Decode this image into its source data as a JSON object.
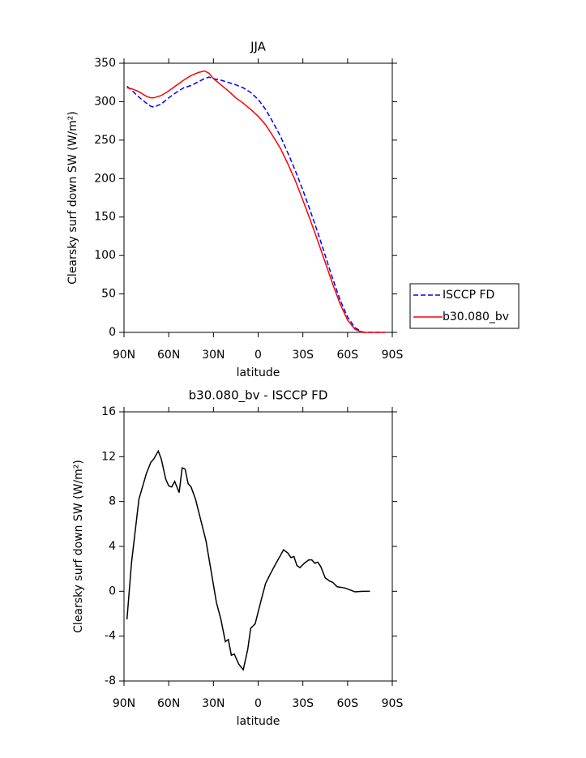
{
  "chart_data": [
    {
      "type": "line",
      "title": "JJA",
      "xlabel": "latitude",
      "ylabel": "Clearsky surf down SW (W/m²)",
      "x": [
        88,
        85,
        80,
        75,
        72,
        70,
        65,
        60,
        55,
        50,
        45,
        40,
        36,
        33,
        30,
        25,
        20,
        15,
        10,
        5,
        0,
        -5,
        -10,
        -15,
        -20,
        -25,
        -30,
        -35,
        -40,
        -45,
        -50,
        -55,
        -60,
        -65,
        -70,
        -75,
        -80,
        -85
      ],
      "series": [
        {
          "name": "ISCCP FD",
          "color": "#0000ff",
          "line_style": "dashed",
          "values": [
            320,
            315,
            306,
            298,
            294,
            293,
            297,
            305,
            312,
            318,
            321,
            326,
            330,
            332,
            330,
            328,
            325,
            322,
            318,
            312,
            303,
            290,
            273,
            255,
            233,
            210,
            185,
            158,
            130,
            100,
            70,
            42,
            20,
            6,
            0.5,
            0,
            0,
            0
          ]
        },
        {
          "name": "b30.080_bv",
          "color": "#ff0000",
          "line_style": "solid",
          "values": [
            318,
            317,
            313,
            307,
            305,
            305,
            308,
            314,
            321,
            328,
            334,
            338,
            340,
            337,
            330,
            322,
            314,
            305,
            298,
            290,
            281,
            270,
            255,
            239,
            219,
            197,
            172,
            146,
            119,
            91,
            63,
            37,
            16,
            4,
            0,
            0,
            0,
            0
          ]
        }
      ],
      "xlim": [
        90,
        -90
      ],
      "xticks": [
        {
          "value": 90,
          "label": "90N"
        },
        {
          "value": 60,
          "label": "60N"
        },
        {
          "value": 30,
          "label": "30N"
        },
        0,
        {
          "value": -30,
          "label": "30S"
        },
        {
          "value": -60,
          "label": "60S"
        },
        {
          "value": -90,
          "label": "90S"
        }
      ],
      "ylim": [
        0,
        350
      ],
      "yticks": [
        0,
        50,
        100,
        150,
        200,
        250,
        300,
        350
      ],
      "legend": "right"
    },
    {
      "type": "line",
      "title": "b30.080_bv - ISCCP FD",
      "xlabel": "latitude",
      "ylabel": "Clearsky surf down SW (W/m²)",
      "x": [
        88,
        85,
        80,
        75,
        72,
        70,
        67,
        65,
        62,
        60,
        58,
        56,
        53,
        51,
        49,
        47,
        45,
        42,
        35,
        28,
        25,
        22,
        20,
        18,
        16,
        13,
        10,
        7,
        5,
        2,
        -2,
        -5,
        -8,
        -12,
        -15,
        -17,
        -20,
        -22,
        -24,
        -26,
        -28,
        -31,
        -34,
        -36,
        -38,
        -40,
        -42,
        -45,
        -48,
        -50,
        -53,
        -58,
        -62,
        -65,
        -70,
        -75
      ],
      "values": [
        -2.5,
        2.5,
        8.2,
        10.5,
        11.5,
        11.8,
        12.5,
        11.8,
        10,
        9.4,
        9.3,
        9.8,
        8.8,
        11,
        10.9,
        9.6,
        9.3,
        8.2,
        4.5,
        -1,
        -2.5,
        -4.5,
        -4.3,
        -5.7,
        -5.6,
        -6.5,
        -7,
        -5.2,
        -3.3,
        -2.9,
        -0.8,
        0.7,
        1.5,
        2.5,
        3.2,
        3.7,
        3.4,
        3,
        3.1,
        2.3,
        2.1,
        2.5,
        2.8,
        2.8,
        2.5,
        2.6,
        2.2,
        1.2,
        0.9,
        0.8,
        0.4,
        0.3,
        0.1,
        -0.05,
        0,
        0
      ],
      "color": "#000000",
      "xlim": [
        90,
        -90
      ],
      "xticks": [
        {
          "value": 90,
          "label": "90N"
        },
        {
          "value": 60,
          "label": "60N"
        },
        {
          "value": 30,
          "label": "30N"
        },
        0,
        {
          "value": -30,
          "label": "30S"
        },
        {
          "value": -60,
          "label": "60S"
        },
        {
          "value": -90,
          "label": "90S"
        }
      ],
      "ylim": [
        -8,
        16
      ],
      "yticks": [
        -8,
        -4,
        0,
        4,
        8,
        12,
        16
      ]
    }
  ]
}
